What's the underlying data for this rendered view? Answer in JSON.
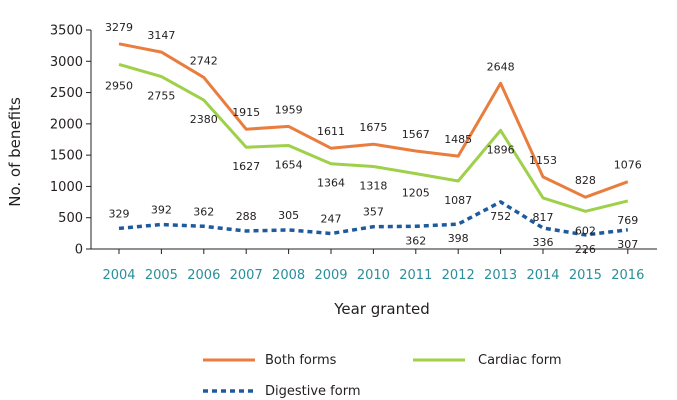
{
  "chart_data": {
    "type": "line",
    "title": "",
    "xlabel": "Year granted",
    "ylabel": "No. of benefits",
    "ylim": [
      0,
      3500
    ],
    "yticks": [
      0,
      500,
      1000,
      1500,
      2000,
      2500,
      3000,
      3500
    ],
    "categories": [
      "2004",
      "2005",
      "2006",
      "2007",
      "2008",
      "2009",
      "2010",
      "2011",
      "2012",
      "2013",
      "2014",
      "2015",
      "2016"
    ],
    "series": [
      {
        "name": "Both forms",
        "color": "#e87d3e",
        "style": "solid",
        "values": [
          3279,
          3147,
          2742,
          1915,
          1959,
          1611,
          1675,
          1567,
          1485,
          2648,
          1153,
          828,
          1076
        ]
      },
      {
        "name": "Cardiac form",
        "color": "#9ed04a",
        "style": "solid",
        "values": [
          2950,
          2755,
          2380,
          1627,
          1654,
          1364,
          1318,
          1205,
          1087,
          1896,
          817,
          602,
          769
        ]
      },
      {
        "name": "Digestive form",
        "color": "#1e5b9e",
        "style": "dotted",
        "values": [
          329,
          392,
          362,
          288,
          305,
          247,
          357,
          362,
          398,
          752,
          336,
          226,
          307
        ]
      }
    ],
    "legend": {
      "position": "bottom"
    }
  }
}
